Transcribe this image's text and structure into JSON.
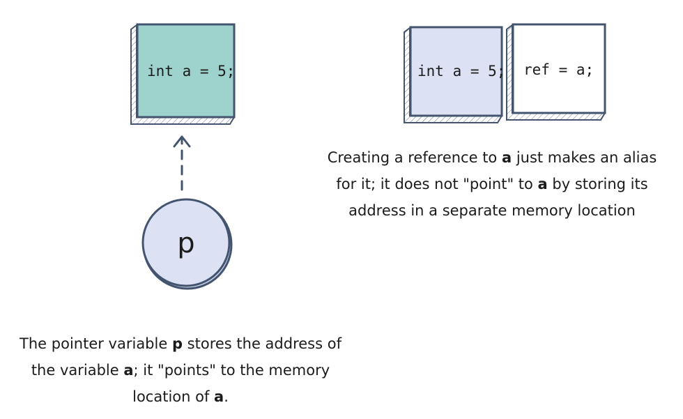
{
  "pointer_side": {
    "variable_box": {
      "code": "int a = 5;",
      "fill": "#9dd3cc"
    },
    "pointer_circle": {
      "label": "p",
      "fill": "#dce2f4"
    },
    "caption": {
      "t1": "The pointer variable ",
      "b1": "p",
      "t2": " stores the address of the variable ",
      "b2": "a",
      "t3": "; it \"points\" to the memory location of ",
      "b3": "a",
      "t4": "."
    }
  },
  "reference_side": {
    "variable_box": {
      "code": "int a = 5;",
      "fill": "#dce2f4"
    },
    "reference_box": {
      "code": "ref = a;",
      "fill": "#ffffff"
    },
    "caption": {
      "t1": "Creating a reference to ",
      "b1": "a",
      "t2": " just makes an alias for it; it does not \"point\" to ",
      "b2": "a",
      "t3": " by storing its address in a separate memory location"
    }
  },
  "colors": {
    "outline": "#44546f",
    "arrow": "#44546f"
  }
}
